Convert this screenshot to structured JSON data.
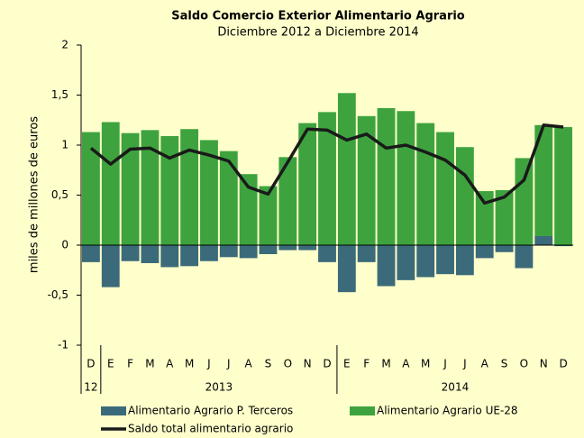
{
  "chart_data": {
    "type": "stacked-bar-line",
    "title": "Saldo Comercio Exterior Alimentario Agrario",
    "subtitle": "Diciembre 2012 a Diciembre 2014",
    "y_label": "miles de millones de euros",
    "category_groups": [
      {
        "label": "12",
        "categories": [
          "D"
        ]
      },
      {
        "label": "2013",
        "categories": [
          "E",
          "F",
          "M",
          "A",
          "M",
          "J",
          "J",
          "A",
          "S",
          "O",
          "N",
          "D"
        ]
      },
      {
        "label": "2014",
        "categories": [
          "E",
          "F",
          "M",
          "A",
          "M",
          "J",
          "J",
          "A",
          "S",
          "O",
          "N",
          "D"
        ]
      }
    ],
    "series": [
      {
        "name": "Alimentario Agrario P. Terceros",
        "color": "#3b6a7a",
        "kind": "bar",
        "values": [
          -0.17,
          -0.42,
          -0.16,
          -0.18,
          -0.22,
          -0.21,
          -0.16,
          -0.12,
          -0.13,
          -0.09,
          -0.05,
          -0.05,
          -0.17,
          -0.47,
          -0.17,
          -0.41,
          -0.35,
          -0.32,
          -0.29,
          -0.3,
          -0.13,
          -0.07,
          -0.23,
          0.09,
          -0.01
        ]
      },
      {
        "name": "Alimentario Agrario UE-28",
        "color": "#3ea33e",
        "kind": "bar",
        "values": [
          1.13,
          1.23,
          1.12,
          1.15,
          1.09,
          1.16,
          1.05,
          0.94,
          0.71,
          0.59,
          0.88,
          1.22,
          1.33,
          1.52,
          1.29,
          1.37,
          1.34,
          1.22,
          1.13,
          0.98,
          0.54,
          0.55,
          0.87,
          1.11,
          1.18
        ]
      },
      {
        "name": "Saldo total alimentario agrario",
        "color": "#1a1a1a",
        "kind": "line",
        "values": [
          0.97,
          0.81,
          0.96,
          0.97,
          0.87,
          0.95,
          0.9,
          0.84,
          0.58,
          0.51,
          0.83,
          1.16,
          1.15,
          1.05,
          1.11,
          0.97,
          1.0,
          0.93,
          0.85,
          0.7,
          0.42,
          0.48,
          0.65,
          1.2,
          1.18
        ]
      }
    ],
    "ylim": [
      -1,
      2
    ],
    "yticks": [
      -1,
      {
        "value": -0.5,
        "label": "-0,5"
      },
      0,
      {
        "value": 0.5,
        "label": "0,5"
      },
      1,
      {
        "value": 1.5,
        "label": "1,5"
      },
      2
    ]
  }
}
